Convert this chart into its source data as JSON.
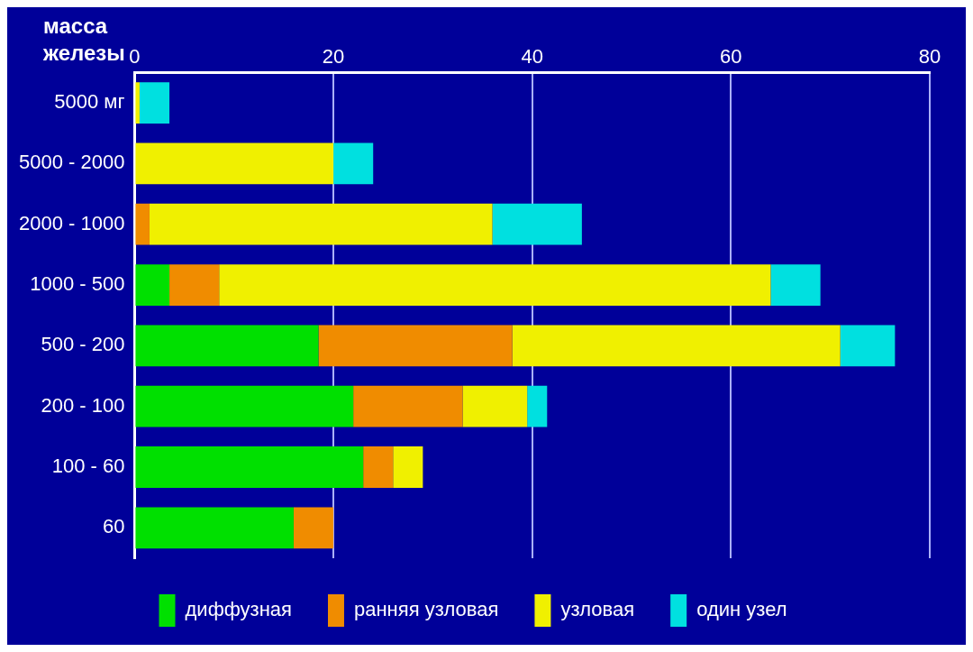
{
  "chart_data": {
    "type": "bar",
    "orientation": "horizontal",
    "stacked": true,
    "ylabel": "масса железы",
    "categories": [
      "5000 мг",
      "5000 - 2000",
      "2000 - 1000",
      "1000 - 500",
      "500 - 200",
      "200 - 100",
      "100 - 60",
      "60"
    ],
    "series": [
      {
        "name": "диффузная",
        "color": "#00e000",
        "values": [
          0,
          0,
          0,
          3.5,
          18.5,
          22,
          23,
          16
        ]
      },
      {
        "name": "ранняя узловая",
        "color": "#f08c00",
        "values": [
          0,
          0,
          1.5,
          5,
          19.5,
          11,
          3,
          4
        ]
      },
      {
        "name": "узловая",
        "color": "#f0f000",
        "values": [
          0.5,
          20,
          34.5,
          55.5,
          33,
          6.5,
          3,
          0
        ]
      },
      {
        "name": "один узел",
        "color": "#00e0e0",
        "values": [
          3,
          4,
          9,
          5,
          5.5,
          2,
          0,
          0
        ]
      }
    ],
    "xlim": [
      0,
      80
    ],
    "xticks": [
      0,
      20,
      40,
      60,
      80
    ],
    "grid": "x",
    "legend": "bottom"
  }
}
